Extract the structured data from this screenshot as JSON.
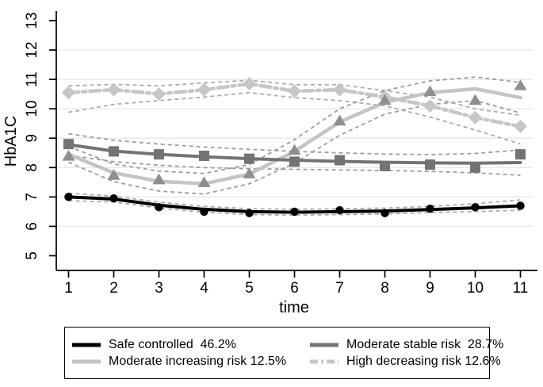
{
  "chart_data": {
    "type": "line",
    "title": "",
    "xlabel": "time",
    "ylabel": "HbA1C",
    "x": [
      1,
      2,
      3,
      4,
      5,
      6,
      7,
      8,
      9,
      10,
      11
    ],
    "xticks": [
      1,
      2,
      3,
      4,
      5,
      6,
      7,
      8,
      9,
      10,
      11
    ],
    "yticks": [
      5,
      6,
      7,
      8,
      9,
      10,
      11,
      12,
      13
    ],
    "gridline_values": [
      6,
      7,
      8,
      9,
      10,
      11,
      12
    ],
    "ylim": [
      5,
      13
    ],
    "grid": "horizontal",
    "legend_position": "below",
    "ci_style": "dashed lines above and below each trajectory",
    "series": [
      {
        "name": "Safe controlled",
        "share": "46.2%",
        "marker": "circle",
        "color": "#000000",
        "ci_color": "#ababab",
        "line_style": "solid",
        "values": [
          7.0,
          6.95,
          6.65,
          6.5,
          6.45,
          6.5,
          6.55,
          6.45,
          6.6,
          6.65,
          6.7
        ],
        "line_values": [
          7.0,
          6.93,
          6.72,
          6.58,
          6.5,
          6.48,
          6.5,
          6.52,
          6.57,
          6.63,
          6.7
        ],
        "ci_upper": [
          7.13,
          7.03,
          6.82,
          6.68,
          6.6,
          6.58,
          6.6,
          6.62,
          6.68,
          6.77,
          6.9
        ],
        "ci_lower": [
          6.87,
          6.83,
          6.62,
          6.48,
          6.4,
          6.38,
          6.4,
          6.42,
          6.47,
          6.5,
          6.55
        ]
      },
      {
        "name": "Moderate stable risk",
        "share": "28.7%",
        "marker": "square",
        "color": "#737373",
        "ci_color": "#9d9d9d",
        "line_style": "solid",
        "values": [
          8.8,
          8.55,
          8.45,
          8.4,
          8.3,
          8.2,
          8.25,
          8.05,
          8.1,
          8.0,
          8.45
        ],
        "line_values": [
          8.78,
          8.56,
          8.45,
          8.37,
          8.3,
          8.25,
          8.21,
          8.18,
          8.16,
          8.15,
          8.17
        ],
        "ci_upper": [
          9.15,
          8.93,
          8.8,
          8.7,
          8.62,
          8.55,
          8.5,
          8.46,
          8.44,
          8.48,
          8.6
        ],
        "ci_lower": [
          8.42,
          8.2,
          8.08,
          8.0,
          7.96,
          7.94,
          7.92,
          7.9,
          7.87,
          7.82,
          7.74
        ]
      },
      {
        "name": "Moderate increasing risk",
        "share": "12.5%",
        "marker": "triangle",
        "color": "#c4c4c4",
        "marker_color": "#8f8f8f",
        "ci_color": "#9d9d9d",
        "line_style": "solid",
        "values": [
          8.4,
          7.75,
          7.6,
          7.5,
          7.8,
          8.6,
          9.6,
          10.3,
          10.6,
          10.3,
          10.8
        ],
        "line_values": [
          8.45,
          7.82,
          7.53,
          7.45,
          7.78,
          8.55,
          9.55,
          10.22,
          10.55,
          10.68,
          10.38
        ],
        "ci_upper": [
          8.72,
          8.12,
          7.88,
          7.8,
          8.1,
          8.95,
          10.0,
          10.62,
          10.95,
          11.08,
          10.9
        ],
        "ci_lower": [
          8.18,
          7.52,
          7.2,
          7.1,
          7.45,
          8.15,
          9.1,
          9.82,
          10.15,
          10.28,
          9.86
        ]
      },
      {
        "name": "High decreasing risk",
        "share": "12.6%",
        "marker": "diamond",
        "color": "#c6c6c6",
        "marker_color": "#c6c6c6",
        "ci_color": "#ababab",
        "line_style": "dash-dot",
        "values": [
          10.55,
          10.65,
          10.5,
          10.65,
          10.85,
          10.6,
          10.65,
          10.4,
          10.1,
          9.7,
          9.4
        ],
        "line_values": [
          10.55,
          10.65,
          10.5,
          10.65,
          10.85,
          10.6,
          10.65,
          10.4,
          10.1,
          9.7,
          9.4
        ],
        "ci_upper": [
          10.78,
          10.83,
          10.78,
          10.88,
          10.97,
          10.82,
          10.82,
          10.62,
          10.4,
          10.0,
          9.78
        ],
        "ci_lower": [
          9.88,
          10.15,
          10.28,
          10.4,
          10.55,
          10.38,
          10.28,
          10.1,
          9.72,
          9.28,
          8.8
        ]
      }
    ]
  },
  "legend": {
    "items": [
      {
        "label": "Safe controlled  46.2%",
        "color": "#000000",
        "dash": ""
      },
      {
        "label": "Moderate stable risk  28.7%",
        "color": "#737373",
        "dash": ""
      },
      {
        "label": "Moderate increasing risk 12.5%",
        "color": "#c4c4c4",
        "dash": ""
      },
      {
        "label": "High decreasing risk 12.6%",
        "color": "#c6c6c6",
        "dash": "10 4 3 4"
      }
    ]
  },
  "colors": {
    "background": "#ffffff",
    "gridline": "#e9e9e9",
    "axis": "#000000"
  }
}
